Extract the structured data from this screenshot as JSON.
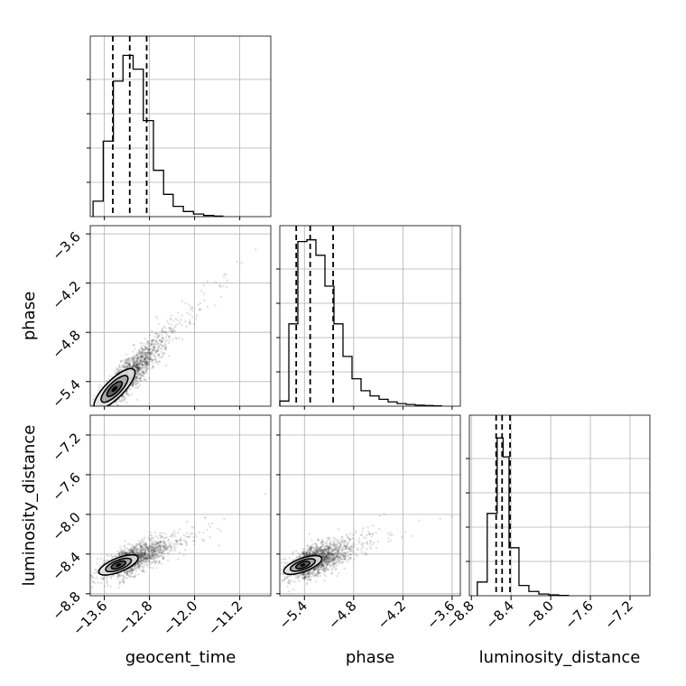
{
  "chart_data": {
    "type": "corner",
    "parameters": [
      "geocent_time",
      "phase",
      "luminosity_distance"
    ],
    "grid": true,
    "quantile_style": "dashed",
    "ranges": {
      "geocent_time": [
        -13.85,
        -10.65
      ],
      "phase": [
        -5.7,
        -3.5
      ],
      "luminosity_distance": [
        -8.82,
        -7.0
      ]
    },
    "ticks": {
      "geocent_time": [
        "−13.6",
        "−12.8",
        "−12.0",
        "−11.2"
      ],
      "phase": [
        "−5.4",
        "−4.8",
        "−4.2",
        "−3.6"
      ],
      "luminosity_distance": [
        "−8.8",
        "−8.4",
        "−8.0",
        "−7.6",
        "−7.2"
      ]
    },
    "tick_values": {
      "geocent_time": [
        -13.6,
        -12.8,
        -12.0,
        -11.2
      ],
      "phase": [
        -5.4,
        -4.8,
        -4.2,
        -3.6
      ],
      "luminosity_distance": [
        -8.8,
        -8.4,
        -8.0,
        -7.6,
        -7.2
      ]
    },
    "histograms": {
      "geocent_time": {
        "bin_edges": [
          -13.8,
          -13.62,
          -13.44,
          -13.27,
          -13.09,
          -12.91,
          -12.73,
          -12.55,
          -12.38,
          -12.2,
          -12.02,
          -11.84,
          -11.66,
          -11.5
        ],
        "counts": [
          0.09,
          0.44,
          0.79,
          0.94,
          0.86,
          0.56,
          0.27,
          0.13,
          0.06,
          0.03,
          0.015,
          0.007,
          0.003
        ],
        "quantiles": [
          -13.45,
          -13.15,
          -12.85
        ]
      },
      "phase": {
        "bin_edges": [
          -5.7,
          -5.59,
          -5.48,
          -5.37,
          -5.26,
          -5.15,
          -5.04,
          -4.93,
          -4.82,
          -4.71,
          -4.6,
          -4.49,
          -4.38,
          -4.27,
          -4.16,
          -4.05,
          -3.94,
          -3.83,
          -3.73
        ],
        "counts": [
          0.03,
          0.48,
          0.96,
          0.97,
          0.88,
          0.7,
          0.48,
          0.29,
          0.16,
          0.09,
          0.06,
          0.04,
          0.025,
          0.015,
          0.01,
          0.006,
          0.004,
          0.002
        ],
        "quantiles": [
          -5.5,
          -5.33,
          -5.05
        ]
      },
      "luminosity_distance": {
        "bin_edges": [
          -8.74,
          -8.64,
          -8.54,
          -8.48,
          -8.42,
          -8.32,
          -8.22,
          -8.12,
          -8.02,
          -7.92,
          -7.82
        ],
        "counts": [
          0.08,
          0.48,
          0.92,
          0.81,
          0.28,
          0.06,
          0.025,
          0.01,
          0.005,
          0.002
        ],
        "quantiles": [
          -8.55,
          -8.49,
          -8.41
        ]
      }
    },
    "correlations": [
      {
        "x": "geocent_time",
        "y": "phase",
        "center": [
          -13.42,
          -5.49
        ],
        "spread": [
          0.3,
          0.22
        ],
        "rho": 0.93,
        "tail_skew": 1.0
      },
      {
        "x": "geocent_time",
        "y": "luminosity_distance",
        "center": [
          -13.35,
          -8.51
        ],
        "spread": [
          0.3,
          0.085
        ],
        "rho": 0.8,
        "tail_skew": 1.0
      },
      {
        "x": "phase",
        "y": "luminosity_distance",
        "center": [
          -5.42,
          -8.51
        ],
        "spread": [
          0.2,
          0.085
        ],
        "rho": 0.72,
        "tail_skew": 1.0
      }
    ]
  }
}
